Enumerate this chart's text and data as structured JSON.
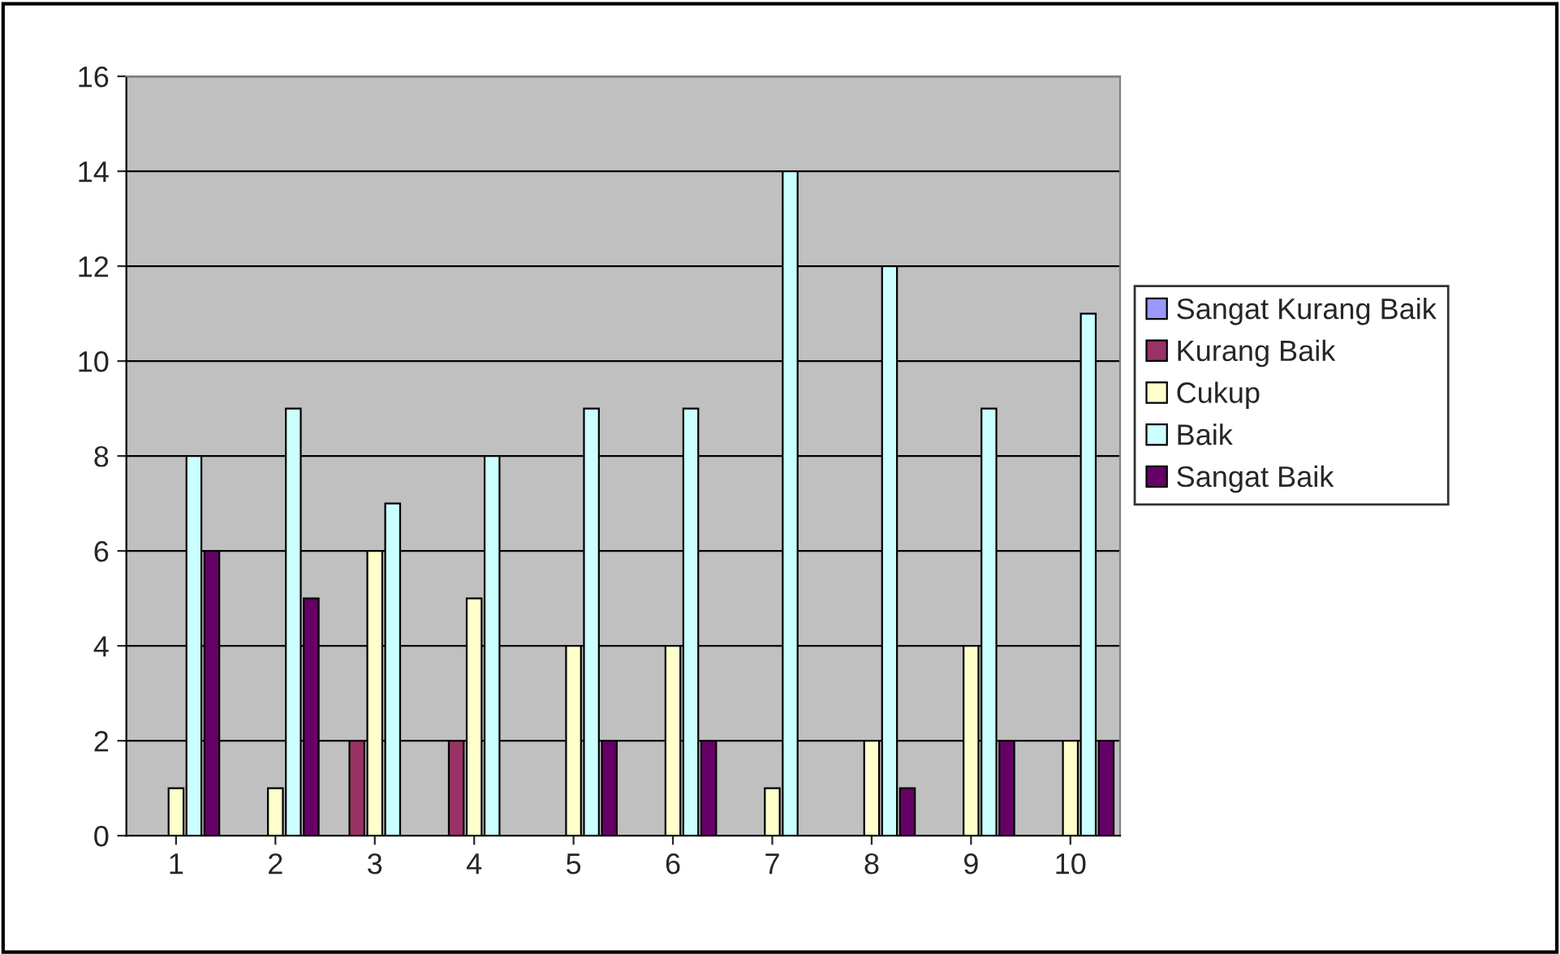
{
  "chart_data": {
    "type": "bar",
    "categories": [
      "1",
      "2",
      "3",
      "4",
      "5",
      "6",
      "7",
      "8",
      "9",
      "10"
    ],
    "series": [
      {
        "name": "Sangat Kurang Baik",
        "color": "#9999ff",
        "values": [
          0,
          0,
          0,
          0,
          0,
          0,
          0,
          0,
          0,
          0
        ]
      },
      {
        "name": "Kurang Baik",
        "color": "#993366",
        "values": [
          0,
          0,
          2,
          2,
          0,
          0,
          0,
          0,
          0,
          0
        ]
      },
      {
        "name": "Cukup",
        "color": "#ffffcc",
        "values": [
          1,
          1,
          6,
          5,
          4,
          4,
          1,
          2,
          4,
          2
        ]
      },
      {
        "name": "Baik",
        "color": "#ccffff",
        "values": [
          8,
          9,
          7,
          8,
          9,
          9,
          14,
          12,
          9,
          11
        ]
      },
      {
        "name": "Sangat Baik",
        "color": "#660066",
        "values": [
          6,
          5,
          0,
          0,
          2,
          2,
          0,
          1,
          2,
          2
        ]
      }
    ],
    "ylim": [
      0,
      16
    ],
    "yticks": [
      0,
      2,
      4,
      6,
      8,
      10,
      12,
      14,
      16
    ],
    "grid": "y",
    "legend": "right"
  }
}
